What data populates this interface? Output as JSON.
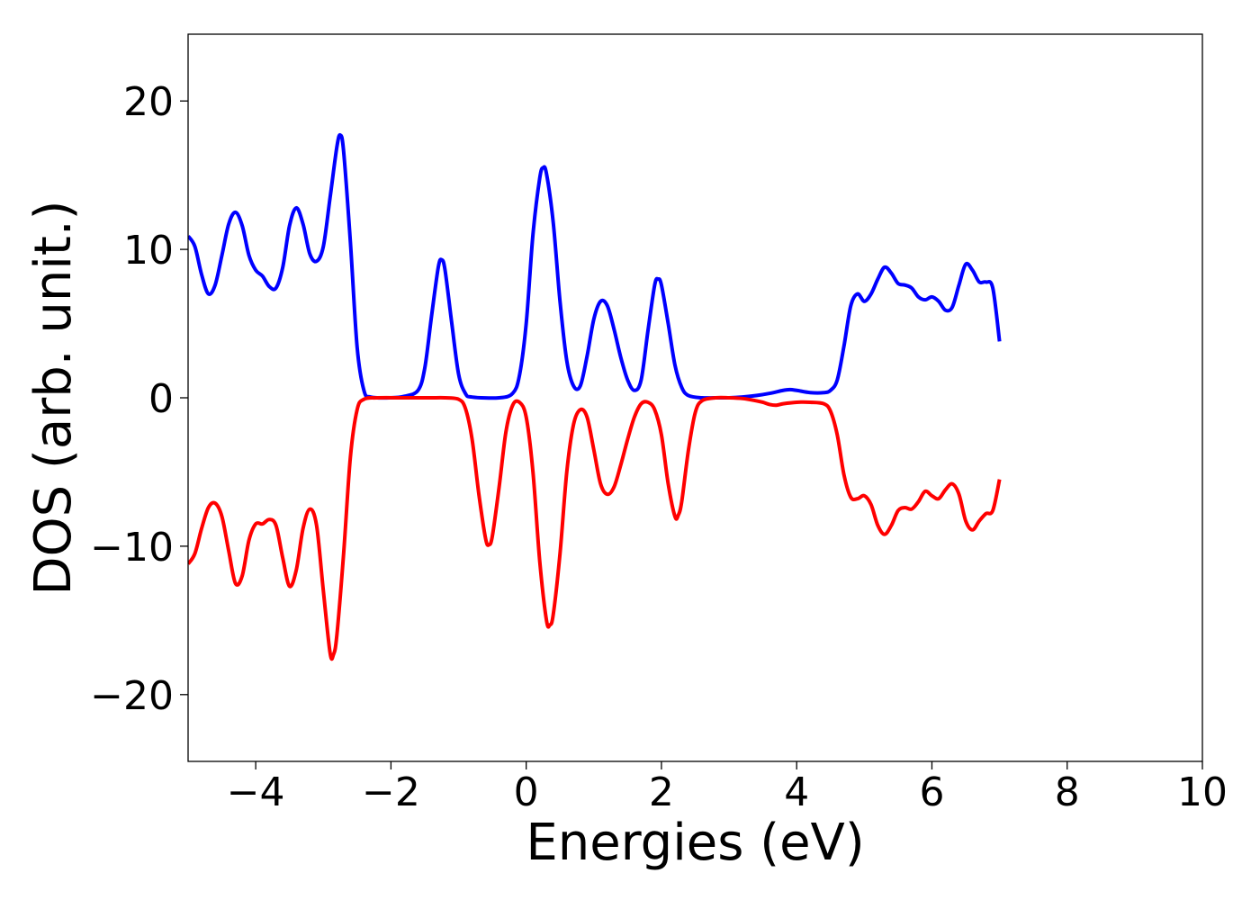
{
  "chart_data": {
    "type": "line",
    "title": "",
    "xlabel": "Energies (eV)",
    "ylabel": "DOS (arb. unit.)",
    "xlim": [
      -5,
      10
    ],
    "ylim": [
      -24.5,
      24.5
    ],
    "x_ticks": [
      -4,
      -2,
      0,
      2,
      4,
      6,
      8,
      10
    ],
    "x_tick_labels": [
      "−4",
      "−2",
      "0",
      "2",
      "4",
      "6",
      "8",
      "10"
    ],
    "y_ticks": [
      -20,
      -10,
      0,
      10,
      20
    ],
    "y_tick_labels": [
      "−20",
      "−10",
      "0",
      "10",
      "20"
    ],
    "grid": false,
    "legend": false,
    "series": [
      {
        "color": "#0000ff",
        "points": [
          [
            -5.0,
            10.9
          ],
          [
            -4.9,
            10.2
          ],
          [
            -4.8,
            8.3
          ],
          [
            -4.7,
            7.0
          ],
          [
            -4.6,
            7.6
          ],
          [
            -4.5,
            9.6
          ],
          [
            -4.4,
            11.7
          ],
          [
            -4.3,
            12.5
          ],
          [
            -4.2,
            11.6
          ],
          [
            -4.1,
            9.6
          ],
          [
            -4.0,
            8.6
          ],
          [
            -3.9,
            8.2
          ],
          [
            -3.8,
            7.5
          ],
          [
            -3.7,
            7.4
          ],
          [
            -3.6,
            8.8
          ],
          [
            -3.5,
            11.6
          ],
          [
            -3.4,
            12.8
          ],
          [
            -3.3,
            11.7
          ],
          [
            -3.2,
            9.7
          ],
          [
            -3.1,
            9.2
          ],
          [
            -3.0,
            10.2
          ],
          [
            -2.9,
            13.5
          ],
          [
            -2.8,
            16.9
          ],
          [
            -2.75,
            17.7
          ],
          [
            -2.7,
            16.6
          ],
          [
            -2.6,
            10.5
          ],
          [
            -2.5,
            3.4
          ],
          [
            -2.4,
            0.5
          ],
          [
            -2.3,
            0.05
          ],
          [
            -2.0,
            0.0
          ],
          [
            -1.8,
            0.1
          ],
          [
            -1.6,
            0.5
          ],
          [
            -1.5,
            2.0
          ],
          [
            -1.4,
            5.5
          ],
          [
            -1.3,
            8.8
          ],
          [
            -1.25,
            9.3
          ],
          [
            -1.2,
            8.6
          ],
          [
            -1.1,
            5.0
          ],
          [
            -1.0,
            1.6
          ],
          [
            -0.9,
            0.3
          ],
          [
            -0.8,
            0.05
          ],
          [
            -0.4,
            0.0
          ],
          [
            -0.2,
            0.3
          ],
          [
            -0.1,
            1.5
          ],
          [
            0.0,
            5.0
          ],
          [
            0.1,
            11.0
          ],
          [
            0.2,
            14.8
          ],
          [
            0.25,
            15.5
          ],
          [
            0.3,
            15.1
          ],
          [
            0.4,
            11.8
          ],
          [
            0.5,
            6.5
          ],
          [
            0.6,
            2.5
          ],
          [
            0.7,
            0.8
          ],
          [
            0.8,
            0.8
          ],
          [
            0.9,
            2.8
          ],
          [
            1.0,
            5.3
          ],
          [
            1.1,
            6.5
          ],
          [
            1.2,
            6.2
          ],
          [
            1.3,
            4.6
          ],
          [
            1.4,
            2.7
          ],
          [
            1.5,
            1.2
          ],
          [
            1.6,
            0.5
          ],
          [
            1.7,
            1.2
          ],
          [
            1.8,
            4.5
          ],
          [
            1.9,
            7.6
          ],
          [
            1.95,
            8.0
          ],
          [
            2.0,
            7.6
          ],
          [
            2.1,
            5.0
          ],
          [
            2.2,
            2.2
          ],
          [
            2.3,
            0.7
          ],
          [
            2.4,
            0.15
          ],
          [
            2.6,
            0.0
          ],
          [
            2.8,
            0.0
          ],
          [
            3.0,
            0.0
          ],
          [
            3.2,
            0.05
          ],
          [
            3.4,
            0.15
          ],
          [
            3.6,
            0.3
          ],
          [
            3.8,
            0.5
          ],
          [
            3.9,
            0.55
          ],
          [
            4.0,
            0.5
          ],
          [
            4.2,
            0.35
          ],
          [
            4.4,
            0.35
          ],
          [
            4.5,
            0.5
          ],
          [
            4.6,
            1.2
          ],
          [
            4.7,
            3.5
          ],
          [
            4.8,
            6.2
          ],
          [
            4.9,
            7.0
          ],
          [
            5.0,
            6.5
          ],
          [
            5.1,
            7.0
          ],
          [
            5.2,
            8.0
          ],
          [
            5.3,
            8.8
          ],
          [
            5.4,
            8.4
          ],
          [
            5.5,
            7.7
          ],
          [
            5.6,
            7.6
          ],
          [
            5.7,
            7.4
          ],
          [
            5.8,
            6.8
          ],
          [
            5.9,
            6.6
          ],
          [
            6.0,
            6.8
          ],
          [
            6.1,
            6.5
          ],
          [
            6.2,
            5.9
          ],
          [
            6.3,
            6.1
          ],
          [
            6.4,
            7.6
          ],
          [
            6.5,
            9.0
          ],
          [
            6.6,
            8.6
          ],
          [
            6.7,
            7.8
          ],
          [
            6.8,
            7.8
          ],
          [
            6.9,
            7.4
          ],
          [
            7.0,
            3.8
          ]
        ]
      },
      {
        "color": "#ff0000",
        "points": [
          [
            -5.0,
            -11.2
          ],
          [
            -4.9,
            -10.5
          ],
          [
            -4.8,
            -8.8
          ],
          [
            -4.7,
            -7.4
          ],
          [
            -4.6,
            -7.1
          ],
          [
            -4.5,
            -8.0
          ],
          [
            -4.4,
            -10.3
          ],
          [
            -4.3,
            -12.5
          ],
          [
            -4.2,
            -12.0
          ],
          [
            -4.1,
            -9.6
          ],
          [
            -4.0,
            -8.5
          ],
          [
            -3.9,
            -8.5
          ],
          [
            -3.8,
            -8.2
          ],
          [
            -3.7,
            -8.6
          ],
          [
            -3.6,
            -10.8
          ],
          [
            -3.5,
            -12.7
          ],
          [
            -3.4,
            -11.6
          ],
          [
            -3.3,
            -8.8
          ],
          [
            -3.2,
            -7.5
          ],
          [
            -3.1,
            -8.6
          ],
          [
            -3.0,
            -13.0
          ],
          [
            -2.9,
            -17.2
          ],
          [
            -2.85,
            -17.3
          ],
          [
            -2.8,
            -16.0
          ],
          [
            -2.7,
            -10.5
          ],
          [
            -2.6,
            -4.0
          ],
          [
            -2.5,
            -0.8
          ],
          [
            -2.4,
            -0.1
          ],
          [
            -2.2,
            0.0
          ],
          [
            -1.8,
            0.0
          ],
          [
            -1.6,
            0.0
          ],
          [
            -1.4,
            0.0
          ],
          [
            -1.2,
            0.0
          ],
          [
            -1.0,
            -0.1
          ],
          [
            -0.9,
            -0.7
          ],
          [
            -0.8,
            -2.8
          ],
          [
            -0.7,
            -6.5
          ],
          [
            -0.6,
            -9.5
          ],
          [
            -0.55,
            -9.9
          ],
          [
            -0.5,
            -9.3
          ],
          [
            -0.4,
            -6.0
          ],
          [
            -0.3,
            -2.3
          ],
          [
            -0.2,
            -0.5
          ],
          [
            -0.1,
            -0.3
          ],
          [
            0.0,
            -1.3
          ],
          [
            0.1,
            -5.0
          ],
          [
            0.2,
            -11.0
          ],
          [
            0.3,
            -15.0
          ],
          [
            0.35,
            -15.3
          ],
          [
            0.4,
            -14.6
          ],
          [
            0.5,
            -10.5
          ],
          [
            0.6,
            -5.0
          ],
          [
            0.7,
            -1.8
          ],
          [
            0.8,
            -0.8
          ],
          [
            0.9,
            -1.3
          ],
          [
            1.0,
            -3.5
          ],
          [
            1.1,
            -5.8
          ],
          [
            1.2,
            -6.5
          ],
          [
            1.3,
            -6.0
          ],
          [
            1.4,
            -4.5
          ],
          [
            1.5,
            -2.8
          ],
          [
            1.6,
            -1.3
          ],
          [
            1.7,
            -0.4
          ],
          [
            1.8,
            -0.3
          ],
          [
            1.9,
            -0.8
          ],
          [
            2.0,
            -2.5
          ],
          [
            2.1,
            -5.8
          ],
          [
            2.2,
            -8.0
          ],
          [
            2.25,
            -7.9
          ],
          [
            2.3,
            -7.0
          ],
          [
            2.4,
            -3.5
          ],
          [
            2.5,
            -1.0
          ],
          [
            2.6,
            -0.2
          ],
          [
            2.8,
            0.0
          ],
          [
            3.0,
            0.0
          ],
          [
            3.2,
            -0.05
          ],
          [
            3.4,
            -0.2
          ],
          [
            3.5,
            -0.3
          ],
          [
            3.6,
            -0.45
          ],
          [
            3.7,
            -0.5
          ],
          [
            3.8,
            -0.4
          ],
          [
            4.0,
            -0.3
          ],
          [
            4.2,
            -0.3
          ],
          [
            4.4,
            -0.4
          ],
          [
            4.5,
            -0.9
          ],
          [
            4.6,
            -2.5
          ],
          [
            4.7,
            -5.2
          ],
          [
            4.8,
            -6.7
          ],
          [
            4.9,
            -6.8
          ],
          [
            5.0,
            -6.6
          ],
          [
            5.1,
            -7.2
          ],
          [
            5.2,
            -8.6
          ],
          [
            5.3,
            -9.2
          ],
          [
            5.4,
            -8.6
          ],
          [
            5.5,
            -7.6
          ],
          [
            5.6,
            -7.4
          ],
          [
            5.7,
            -7.5
          ],
          [
            5.8,
            -7.0
          ],
          [
            5.9,
            -6.3
          ],
          [
            6.0,
            -6.6
          ],
          [
            6.1,
            -6.8
          ],
          [
            6.2,
            -6.2
          ],
          [
            6.3,
            -5.8
          ],
          [
            6.4,
            -6.5
          ],
          [
            6.5,
            -8.3
          ],
          [
            6.6,
            -8.9
          ],
          [
            6.7,
            -8.3
          ],
          [
            6.8,
            -7.8
          ],
          [
            6.9,
            -7.6
          ],
          [
            7.0,
            -5.5
          ]
        ]
      }
    ]
  }
}
